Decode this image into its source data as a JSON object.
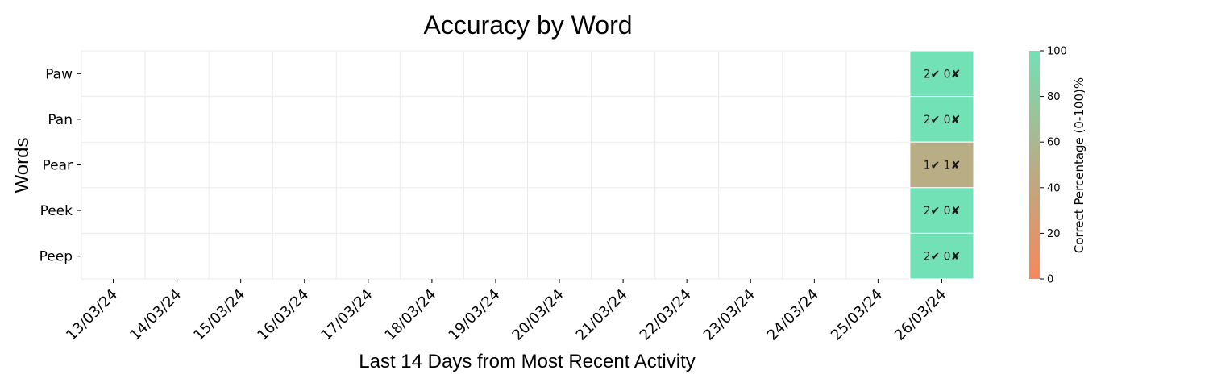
{
  "chart_data": {
    "type": "heatmap",
    "title": "Accuracy by Word",
    "xlabel": "Last 14 Days from Most Recent Activity",
    "ylabel": "Words",
    "x": [
      "13/03/24",
      "14/03/24",
      "15/03/24",
      "16/03/24",
      "17/03/24",
      "18/03/24",
      "19/03/24",
      "20/03/24",
      "21/03/24",
      "22/03/24",
      "23/03/24",
      "24/03/24",
      "25/03/24",
      "26/03/24"
    ],
    "y": [
      "Paw",
      "Pan",
      "Pear",
      "Peek",
      "Peep"
    ],
    "cells": [
      {
        "word": "Paw",
        "date": "26/03/24",
        "value": 100,
        "label": "2✔ 0✘"
      },
      {
        "word": "Pan",
        "date": "26/03/24",
        "value": 100,
        "label": "2✔ 0✘"
      },
      {
        "word": "Pear",
        "date": "26/03/24",
        "value": 50,
        "label": "1✔ 1✘"
      },
      {
        "word": "Peek",
        "date": "26/03/24",
        "value": 100,
        "label": "2✔ 0✘"
      },
      {
        "word": "Peep",
        "date": "26/03/24",
        "value": 100,
        "label": "2✔ 0✘"
      }
    ],
    "colorbar": {
      "label": "Correct Percentage (0-100)%",
      "range": [
        0,
        100
      ],
      "ticks": [
        0,
        20,
        40,
        60,
        80,
        100
      ],
      "color_low": "#f5895b",
      "color_mid": "#b8ad85",
      "color_high": "#73e1b6"
    },
    "grid": true
  }
}
